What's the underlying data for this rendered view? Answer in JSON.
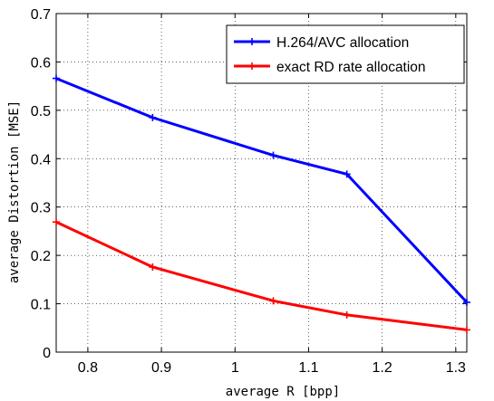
{
  "chart_data": {
    "type": "line",
    "title": "",
    "xlabel": "average R [bpp]",
    "ylabel": "average Distortion [MSE]",
    "xlim": [
      0.757,
      1.315
    ],
    "ylim": [
      0,
      0.7
    ],
    "xticks": [
      0.8,
      0.9,
      1,
      1.1,
      1.2,
      1.3
    ],
    "xtick_labels": [
      "0.8",
      "0.9",
      "1",
      "1.1",
      "1.2",
      "1.3"
    ],
    "yticks": [
      0,
      0.1,
      0.2,
      0.3,
      0.4,
      0.5,
      0.6,
      0.7
    ],
    "ytick_labels": [
      "0",
      "0.1",
      "0.2",
      "0.3",
      "0.4",
      "0.5",
      "0.6",
      "0.7"
    ],
    "grid": true,
    "legend_position": "top-right",
    "series": [
      {
        "name": "H.264/AVC allocation",
        "color": "#0000ff",
        "marker": "+",
        "x": [
          0.757,
          0.888,
          1.052,
          1.152,
          1.315
        ],
        "y": [
          0.566,
          0.485,
          0.407,
          0.368,
          0.103
        ]
      },
      {
        "name": "exact RD rate allocation",
        "color": "#ff0000",
        "marker": "+",
        "x": [
          0.757,
          0.888,
          1.052,
          1.152,
          1.315
        ],
        "y": [
          0.269,
          0.176,
          0.106,
          0.077,
          0.046
        ]
      }
    ]
  }
}
